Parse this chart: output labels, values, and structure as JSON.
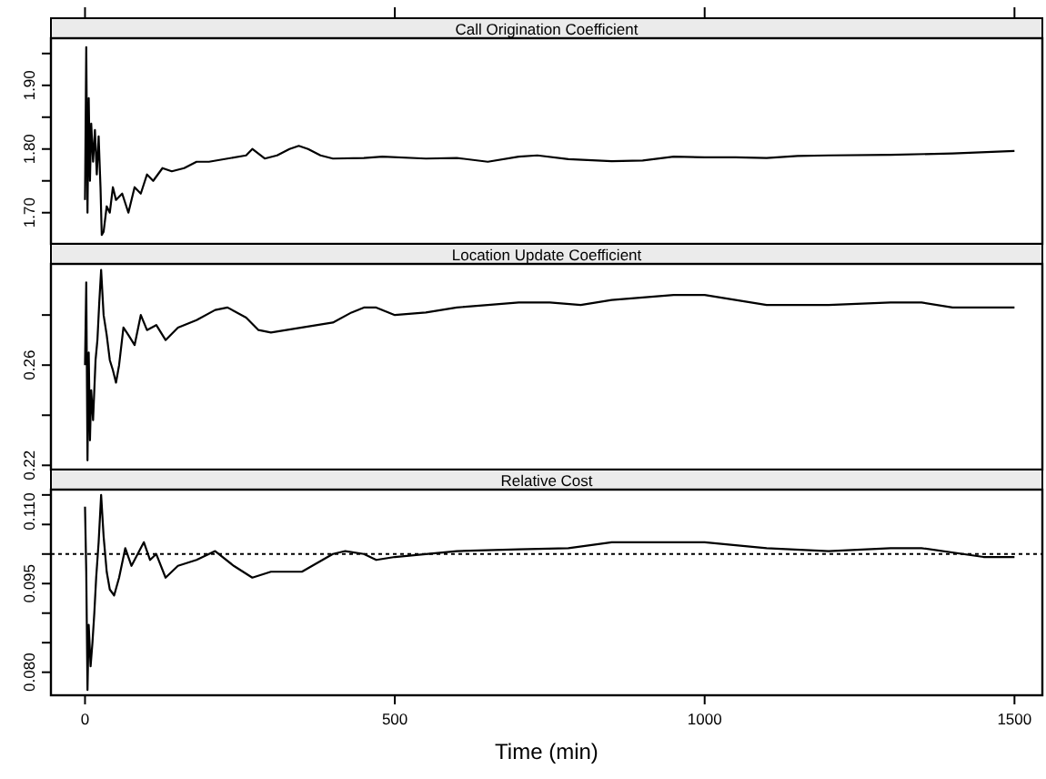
{
  "chart_data": [
    {
      "type": "line",
      "title": "Call Origination Coefficient",
      "tick_labels": "y",
      "xlim": [
        -55,
        1545
      ],
      "xticks": [
        0,
        500,
        1000,
        1500
      ],
      "ylim": [
        1.651,
        1.974
      ],
      "yticks": [
        {
          "value": 1.7,
          "label": "1.70"
        },
        {
          "value": 1.75,
          "label": null
        },
        {
          "value": 1.8,
          "label": "1.80"
        },
        {
          "value": 1.85,
          "label": null
        },
        {
          "value": 1.9,
          "label": "1.90"
        },
        {
          "value": 1.95,
          "label": null
        }
      ],
      "series": [
        {
          "color": "#000000",
          "x": [
            0,
            2,
            4,
            6,
            8,
            10,
            13,
            16,
            19,
            22,
            25,
            27,
            30,
            35,
            40,
            45,
            50,
            60,
            70,
            80,
            90,
            100,
            110,
            125,
            140,
            160,
            180,
            200,
            230,
            260,
            270,
            290,
            310,
            330,
            345,
            360,
            380,
            400,
            450,
            480,
            550,
            600,
            650,
            700,
            730,
            780,
            850,
            900,
            950,
            1000,
            1050,
            1100,
            1150,
            1200,
            1300,
            1400,
            1500
          ],
          "values": [
            1.72,
            1.96,
            1.7,
            1.88,
            1.75,
            1.84,
            1.78,
            1.83,
            1.76,
            1.82,
            1.74,
            1.665,
            1.67,
            1.71,
            1.7,
            1.74,
            1.72,
            1.73,
            1.7,
            1.74,
            1.73,
            1.76,
            1.75,
            1.77,
            1.765,
            1.77,
            1.78,
            1.78,
            1.785,
            1.79,
            1.8,
            1.785,
            1.79,
            1.8,
            1.805,
            1.8,
            1.79,
            1.785,
            1.786,
            1.788,
            1.785,
            1.786,
            1.78,
            1.788,
            1.79,
            1.784,
            1.781,
            1.782,
            1.788,
            1.787,
            1.787,
            1.786,
            1.789,
            1.79,
            1.791,
            1.793,
            1.797
          ]
        }
      ]
    },
    {
      "type": "line",
      "title": "Location Update Coefficient",
      "tick_labels": "y",
      "xlim": [
        -55,
        1545
      ],
      "ylim": [
        0.2183,
        0.3004
      ],
      "yticks": [
        0.22,
        {
          "value": 0.24,
          "label": null
        },
        0.26,
        {
          "value": 0.28,
          "label": null
        }
      ],
      "series": [
        {
          "color": "#000000",
          "x": [
            0,
            2,
            4,
            6,
            8,
            10,
            13,
            17,
            20,
            23,
            26,
            30,
            35,
            40,
            45,
            50,
            55,
            62,
            70,
            80,
            90,
            100,
            115,
            130,
            150,
            180,
            210,
            230,
            260,
            280,
            300,
            350,
            400,
            430,
            450,
            470,
            500,
            550,
            600,
            650,
            700,
            750,
            800,
            850,
            900,
            950,
            1000,
            1050,
            1100,
            1200,
            1300,
            1350,
            1400,
            1500
          ],
          "values": [
            0.26,
            0.293,
            0.222,
            0.265,
            0.23,
            0.25,
            0.238,
            0.262,
            0.27,
            0.285,
            0.298,
            0.28,
            0.272,
            0.262,
            0.258,
            0.253,
            0.26,
            0.275,
            0.272,
            0.268,
            0.28,
            0.274,
            0.276,
            0.27,
            0.275,
            0.278,
            0.282,
            0.283,
            0.279,
            0.274,
            0.273,
            0.275,
            0.277,
            0.281,
            0.283,
            0.283,
            0.28,
            0.281,
            0.283,
            0.284,
            0.285,
            0.285,
            0.284,
            0.286,
            0.287,
            0.288,
            0.288,
            0.286,
            0.284,
            0.284,
            0.285,
            0.285,
            0.283,
            0.283
          ]
        }
      ]
    },
    {
      "type": "line",
      "title": "Relative Cost",
      "xlabel": "Time (min)",
      "xlim": [
        -55,
        1545
      ],
      "xticks": [
        0,
        500,
        1000,
        1500
      ],
      "ylim": [
        0.0761,
        0.1109
      ],
      "yticks": [
        {
          "value": 0.08,
          "label": "0.080"
        },
        {
          "value": 0.085,
          "label": null
        },
        {
          "value": 0.09,
          "label": null
        },
        0.095,
        {
          "value": 0.1,
          "label": null
        },
        {
          "value": 0.105,
          "label": null
        },
        {
          "value": 0.11,
          "label": "0.110"
        }
      ],
      "ref_lines": [
        {
          "axis": "y",
          "value": 0.1,
          "line_style": "dotted",
          "color": "#000000"
        }
      ],
      "series": [
        {
          "color": "#000000",
          "x": [
            0,
            2,
            4,
            6,
            9,
            12,
            15,
            18,
            22,
            26,
            30,
            35,
            40,
            47,
            55,
            65,
            75,
            85,
            95,
            105,
            115,
            130,
            150,
            180,
            210,
            240,
            270,
            300,
            350,
            400,
            420,
            450,
            470,
            500,
            550,
            600,
            700,
            780,
            850,
            900,
            1000,
            1050,
            1100,
            1200,
            1300,
            1350,
            1450,
            1500
          ],
          "values": [
            0.108,
            0.097,
            0.077,
            0.088,
            0.081,
            0.085,
            0.09,
            0.096,
            0.102,
            0.11,
            0.103,
            0.097,
            0.094,
            0.093,
            0.096,
            0.101,
            0.098,
            0.1,
            0.102,
            0.099,
            0.1,
            0.096,
            0.098,
            0.099,
            0.1005,
            0.098,
            0.096,
            0.097,
            0.097,
            0.1,
            0.1005,
            0.1,
            0.099,
            0.0995,
            0.1,
            0.1005,
            0.1008,
            0.101,
            0.102,
            0.102,
            0.102,
            0.1015,
            0.101,
            0.1005,
            0.101,
            0.101,
            0.0995,
            0.0995
          ]
        }
      ]
    }
  ]
}
